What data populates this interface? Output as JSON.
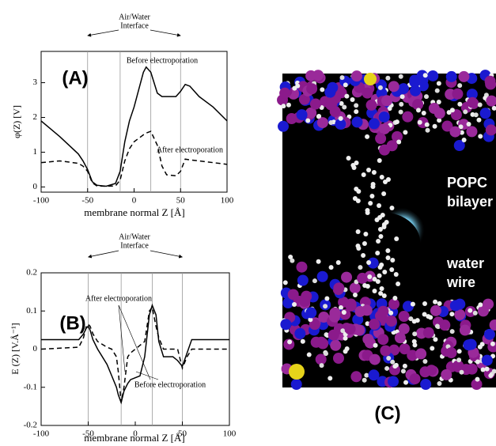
{
  "chart_data": [
    {
      "type": "line",
      "panel_label": "(A)",
      "x_label": "membrane normal Z [Å]",
      "y_label": "φ(Z) [V]",
      "annotations": [
        "Air/Water",
        "Interface",
        "Before electroporation",
        "After electroporation"
      ],
      "xlim": [
        -100,
        100
      ],
      "ylim": [
        -0.15,
        3.9
      ],
      "xticks": [
        -100,
        -50,
        0,
        50,
        100
      ],
      "yticks": [
        0,
        1,
        2,
        3
      ],
      "vlines": [
        -50,
        -15,
        18,
        50
      ],
      "x": [
        -100,
        -80,
        -60,
        -55,
        -50,
        -45,
        -40,
        -30,
        -20,
        -15,
        -10,
        -5,
        0,
        5,
        10,
        13,
        18,
        25,
        30,
        35,
        45,
        50,
        55,
        60,
        70,
        85,
        100
      ],
      "series": [
        {
          "color": "#000000",
          "dash": false,
          "values": [
            1.9,
            1.45,
            0.95,
            0.75,
            0.5,
            0.15,
            0.05,
            0.02,
            0.1,
            0.45,
            1.3,
            1.9,
            2.3,
            2.8,
            3.3,
            3.45,
            3.3,
            2.7,
            2.6,
            2.6,
            2.6,
            2.75,
            2.95,
            2.9,
            2.6,
            2.3,
            1.9
          ]
        },
        {
          "color": "#000000",
          "dash": true,
          "values": [
            0.7,
            0.75,
            0.68,
            0.6,
            0.45,
            0.12,
            0.03,
            0.02,
            0.03,
            0.2,
            0.75,
            1.1,
            1.3,
            1.4,
            1.5,
            1.55,
            1.6,
            1.2,
            0.6,
            0.35,
            0.32,
            0.45,
            0.8,
            0.78,
            0.75,
            0.7,
            0.65
          ]
        }
      ]
    },
    {
      "type": "line",
      "panel_label": "(B)",
      "x_label": "membrane normal Z [Å]",
      "y_label": "E (Z) [V.Å⁻¹]",
      "annotations": [
        "Air/Water",
        "Interface",
        "After electroporation",
        "Before electroporation"
      ],
      "xlim": [
        -100,
        100
      ],
      "ylim": [
        -0.2,
        0.2
      ],
      "xticks": [
        -100,
        -50,
        0,
        50,
        100
      ],
      "yticks": [
        -0.2,
        -0.1,
        0,
        0.1,
        0.2
      ],
      "vlines": [
        -50,
        -15,
        18,
        50
      ],
      "x": [
        -100,
        -60,
        -55,
        -52,
        -50,
        -48,
        -45,
        -40,
        -30,
        -25,
        -20,
        -18,
        -15,
        -12,
        -8,
        -5,
        0,
        5,
        10,
        15,
        18,
        22,
        25,
        30,
        40,
        45,
        50,
        55,
        60,
        100
      ],
      "series": [
        {
          "color": "#000000",
          "dash": false,
          "values": [
            0.025,
            0.025,
            0.04,
            0.055,
            0.06,
            0.05,
            0.025,
            0.0,
            -0.04,
            -0.07,
            -0.1,
            -0.12,
            -0.14,
            -0.11,
            -0.09,
            -0.08,
            -0.075,
            -0.07,
            -0.02,
            0.09,
            0.115,
            0.09,
            0.02,
            -0.02,
            -0.02,
            -0.03,
            -0.045,
            -0.01,
            0.025,
            0.025
          ]
        },
        {
          "color": "#000000",
          "dash": true,
          "values": [
            0.0,
            0.005,
            0.03,
            0.06,
            0.065,
            0.06,
            0.04,
            0.02,
            0.005,
            0.0,
            -0.02,
            -0.06,
            -0.14,
            -0.1,
            -0.02,
            -0.01,
            0.0,
            0.01,
            0.02,
            0.1,
            0.11,
            0.06,
            0.03,
            0.0,
            0.0,
            0.0,
            -0.05,
            -0.02,
            0.0,
            0.0
          ]
        }
      ]
    }
  ],
  "panel_c": {
    "labels": [
      "POPC",
      "bilayer",
      "water",
      "wire"
    ],
    "panel_label": "(C)"
  }
}
